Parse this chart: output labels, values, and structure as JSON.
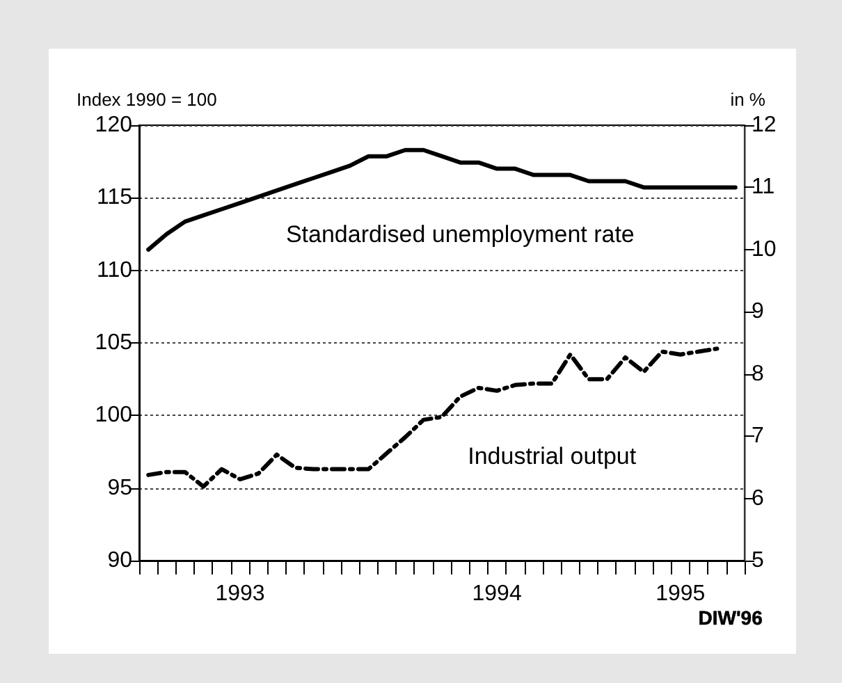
{
  "chart_data": {
    "type": "line",
    "categories": [
      null,
      null,
      null,
      null,
      null,
      "1993",
      null,
      null,
      null,
      null,
      null,
      null,
      null,
      null,
      null,
      null,
      null,
      null,
      null,
      "1994",
      null,
      null,
      null,
      null,
      null,
      null,
      null,
      null,
      null,
      "1995",
      null,
      null,
      null
    ],
    "series": [
      {
        "name": "Standardised unemployment rate",
        "color": "#000000",
        "axis": "y2",
        "line_style": "solid",
        "values": [
          10.0,
          10.25,
          10.45,
          10.55,
          10.65,
          10.75,
          10.85,
          10.95,
          11.05,
          11.15,
          11.25,
          11.35,
          11.5,
          11.5,
          11.6,
          11.6,
          11.5,
          11.4,
          11.4,
          11.3,
          11.3,
          11.2,
          11.2,
          11.2,
          11.1,
          11.1,
          11.1,
          11.0,
          11.0,
          11.0,
          11.0,
          11.0,
          11.0
        ]
      },
      {
        "name": "Industrial output",
        "color": "#000000",
        "axis": "y",
        "line_style": "dashed",
        "values": [
          95.9,
          96.1,
          96.1,
          95.1,
          96.3,
          95.6,
          96.0,
          97.3,
          96.4,
          96.3,
          96.3,
          96.3,
          96.3,
          97.4,
          98.5,
          99.7,
          99.9,
          101.3,
          101.9,
          101.7,
          102.1,
          102.2,
          102.2,
          104.2,
          102.5,
          102.5,
          104.0,
          103.0,
          104.4,
          104.2,
          104.4,
          104.6,
          null
        ]
      }
    ],
    "ylabel": "Index 1990 = 100",
    "y2label": "in %",
    "ylim": [
      90,
      120
    ],
    "yticks": [
      90,
      95,
      100,
      105,
      110,
      115,
      120
    ],
    "y2lim": [
      5,
      12
    ],
    "y2ticks": [
      5,
      6,
      7,
      8,
      9,
      10,
      11,
      12
    ],
    "grid": "y",
    "legend": false,
    "marker": "none",
    "annotations": [
      "DIW'96"
    ]
  }
}
